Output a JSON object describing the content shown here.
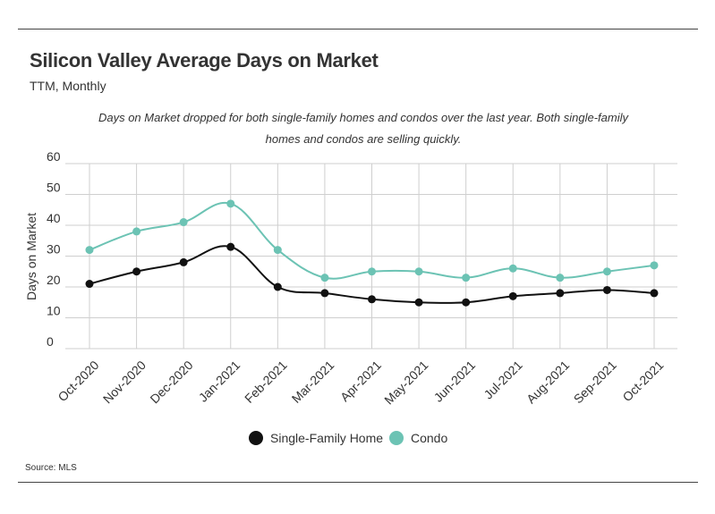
{
  "header": {
    "title": "Silicon Valley Average Days on Market",
    "subtitle": "TTM, Monthly",
    "caption": "Days on Market dropped for both single-family homes and condos over the last year. Both single-family homes and condos are selling quickly."
  },
  "footer": {
    "source": "Source:  MLS"
  },
  "chart_data": {
    "type": "line",
    "title": "Silicon Valley Average Days on Market",
    "subtitle": "TTM, Monthly",
    "xlabel": "",
    "ylabel": "Days on Market",
    "ylim": [
      0,
      60
    ],
    "yticks": [
      0,
      10,
      20,
      30,
      40,
      50,
      60
    ],
    "grid": true,
    "legend_position": "bottom",
    "categories": [
      "Oct-2020",
      "Nov-2020",
      "Dec-2020",
      "Jan-2021",
      "Feb-2021",
      "Mar-2021",
      "Apr-2021",
      "May-2021",
      "Jun-2021",
      "Jul-2021",
      "Aug-2021",
      "Sep-2021",
      "Oct-2021"
    ],
    "series": [
      {
        "name": "Single-Family Home",
        "color": "#111111",
        "values": [
          21,
          25,
          28,
          33,
          20,
          18,
          16,
          15,
          15,
          17,
          18,
          19,
          18
        ]
      },
      {
        "name": "Condo",
        "color": "#6cc3b4",
        "values": [
          32,
          38,
          41,
          47,
          32,
          23,
          25,
          25,
          23,
          26,
          23,
          25,
          27
        ]
      }
    ]
  }
}
